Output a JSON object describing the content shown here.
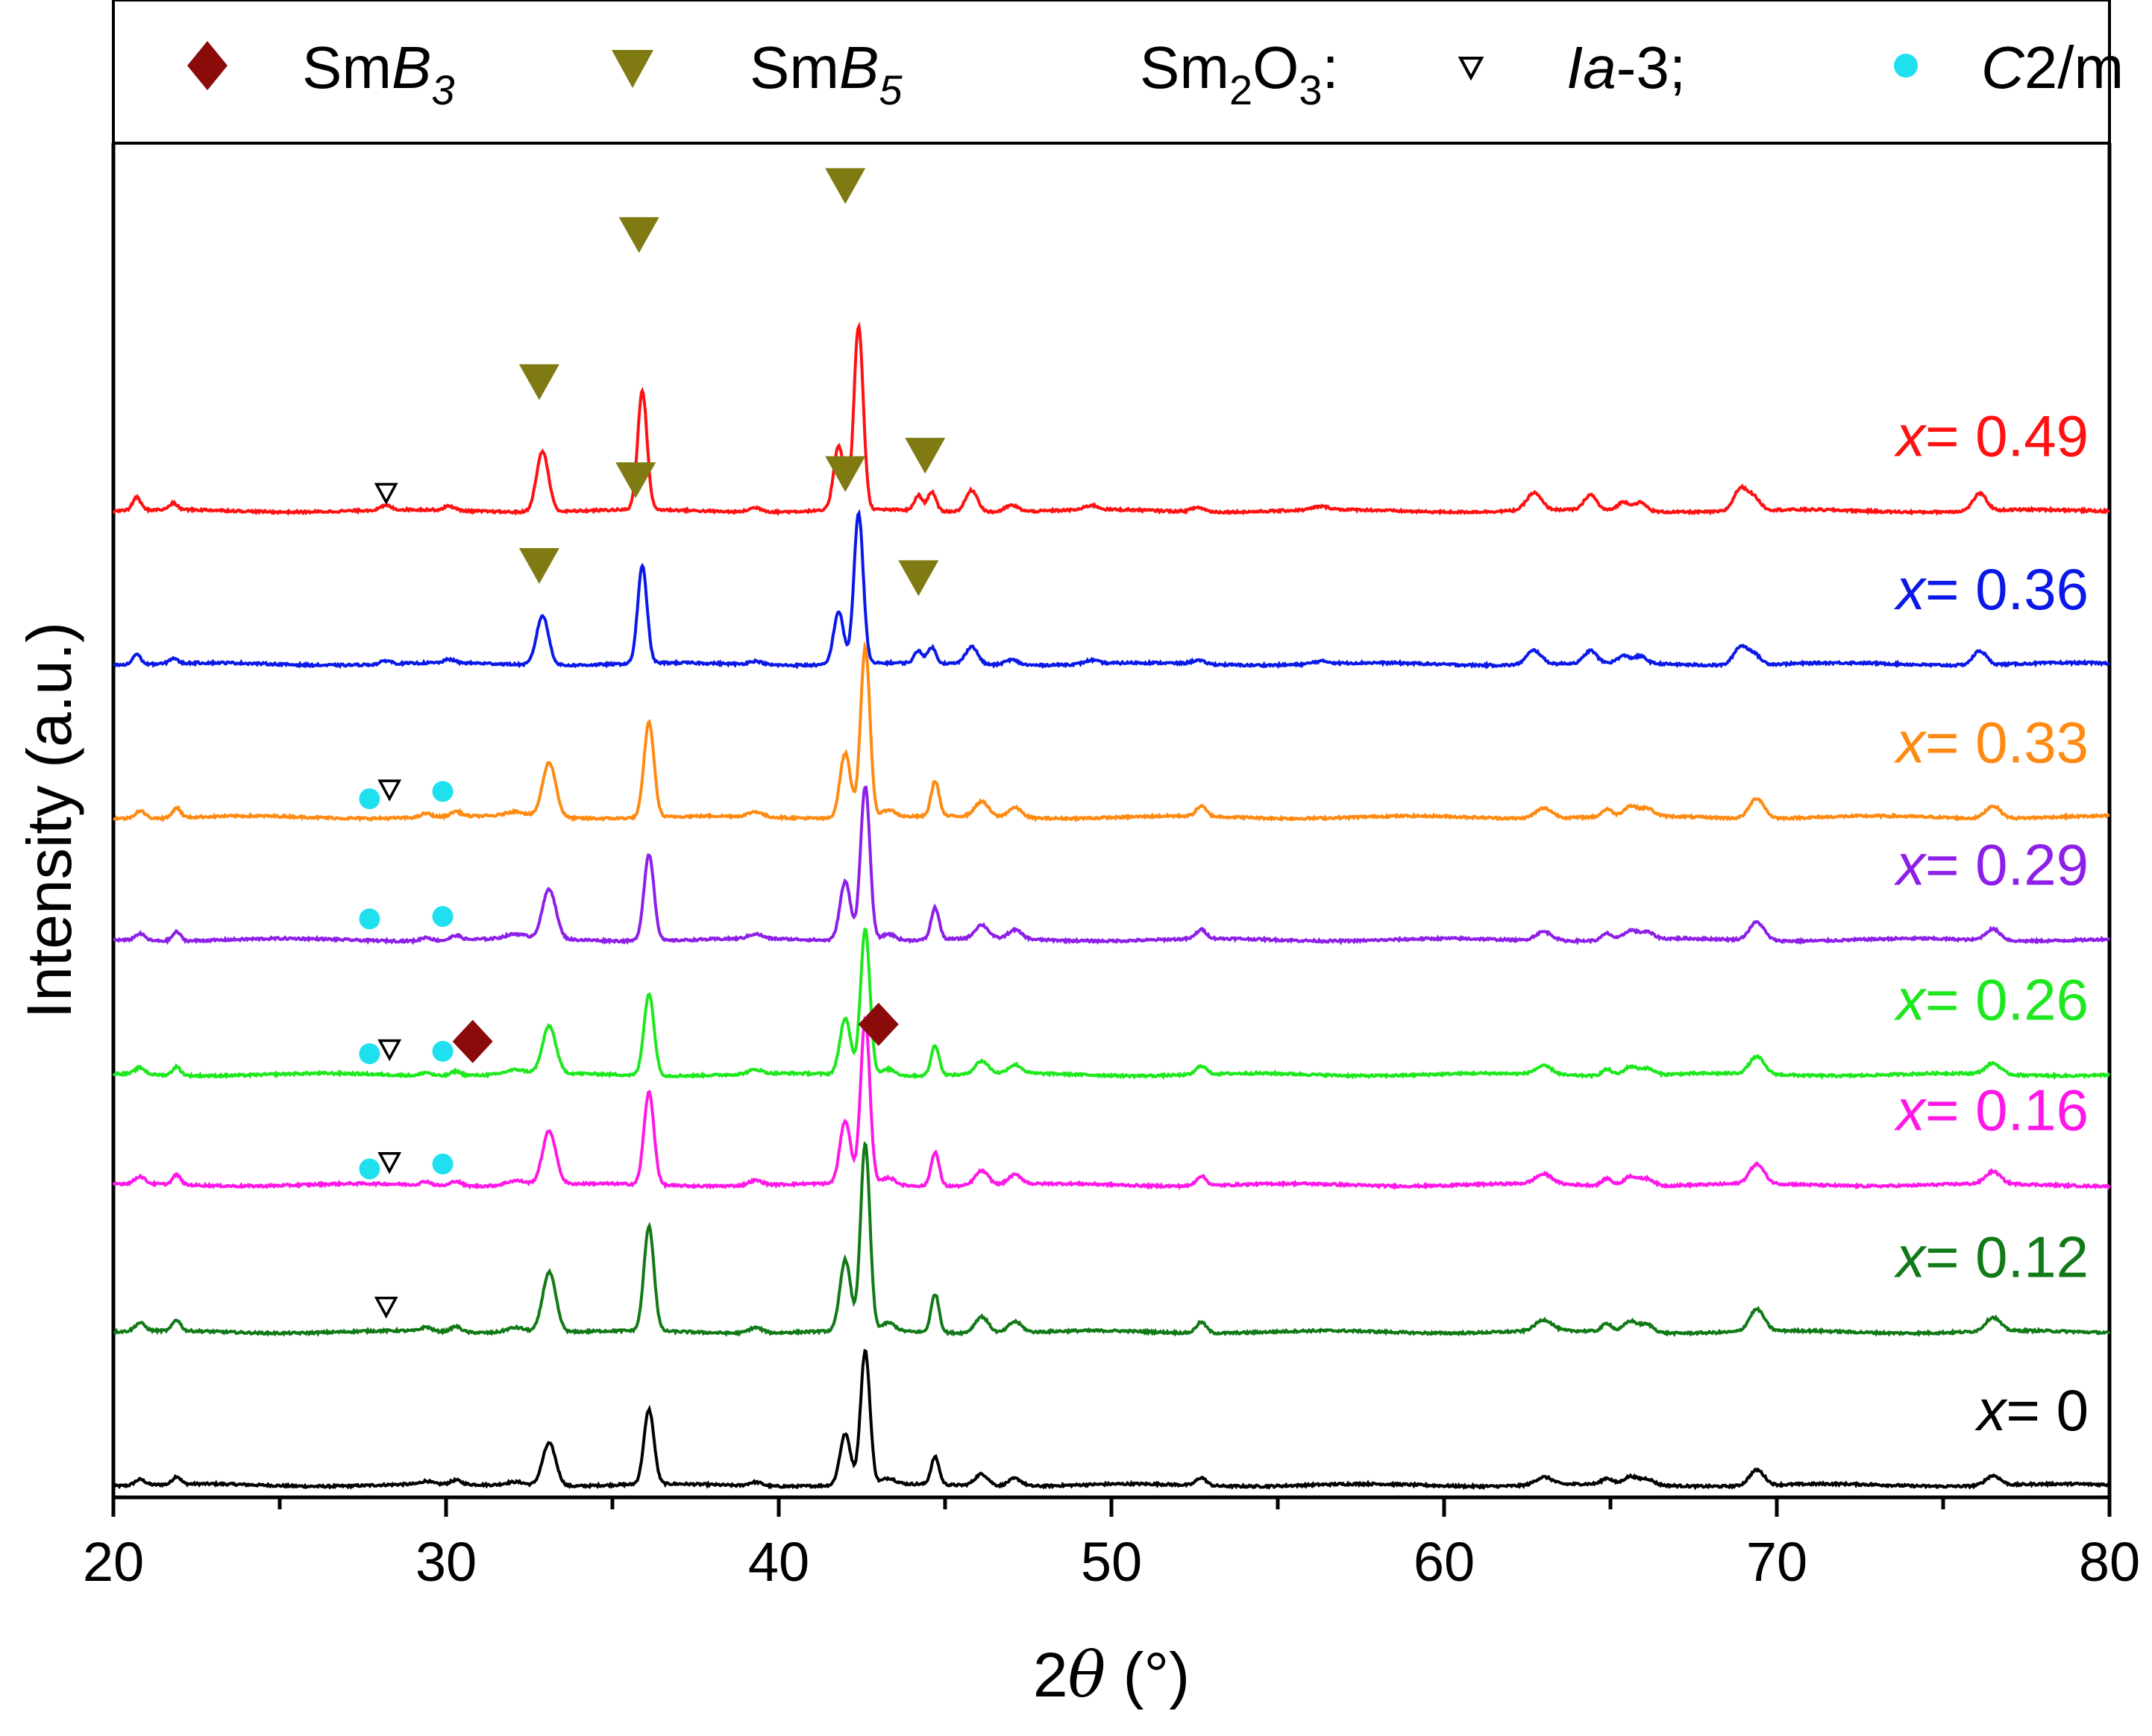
{
  "chart_data": {
    "type": "line",
    "title": "",
    "xlabel_prefix": "2",
    "xlabel_symbol": "θ",
    "xlabel_unit": " (°)",
    "ylabel": "Intensity (a.u.)",
    "xlim": [
      20,
      80
    ],
    "x_ticks": [
      "20",
      "30",
      "40",
      "50",
      "60",
      "70",
      "80"
    ],
    "grid": false,
    "legend": {
      "position": "top",
      "items": [
        {
          "marker": "diamond",
          "color": "#8b0a0a",
          "base": "Sm",
          "italic": "B",
          "sub": "3"
        },
        {
          "marker": "triangle-down",
          "color": "#7f7a12",
          "base": "Sm",
          "italic": "B",
          "sub": "5"
        },
        {
          "marker": "none",
          "label": "Sm₂O₃:",
          "base": "Sm",
          "sub1": "2",
          "mid": "O",
          "sub2": "3",
          "suffix": ":"
        },
        {
          "marker": "open-triangle-down",
          "color": "#000000",
          "italic": "Ia",
          "suffix": "-3;"
        },
        {
          "marker": "circle",
          "color": "#1fe0ef",
          "italic": "C",
          "suffix": "2/m"
        }
      ]
    },
    "common_peaks": [
      {
        "pos": 20.8,
        "h": 0.03,
        "w": 0.15
      },
      {
        "pos": 21.9,
        "h": 0.04,
        "w": 0.12
      },
      {
        "pos": 29.4,
        "h": 0.015,
        "w": 0.15
      },
      {
        "pos": 30.3,
        "h": 0.02,
        "w": 0.15
      },
      {
        "pos": 32.1,
        "h": 0.02,
        "w": 0.3
      },
      {
        "pos": 33.1,
        "h": 0.22,
        "w": 0.2
      },
      {
        "pos": 36.1,
        "h": 0.38,
        "w": 0.15
      },
      {
        "pos": 39.3,
        "h": 0.02,
        "w": 0.2
      },
      {
        "pos": 42.0,
        "h": 0.26,
        "w": 0.16
      },
      {
        "pos": 42.6,
        "h": 0.68,
        "w": 0.14
      },
      {
        "pos": 43.3,
        "h": 0.03,
        "w": 0.2
      },
      {
        "pos": 44.7,
        "h": 0.14,
        "w": 0.12
      },
      {
        "pos": 46.1,
        "h": 0.06,
        "w": 0.2
      },
      {
        "pos": 47.1,
        "h": 0.04,
        "w": 0.2
      },
      {
        "pos": 52.7,
        "h": 0.04,
        "w": 0.15
      },
      {
        "pos": 63.0,
        "h": 0.04,
        "w": 0.25
      },
      {
        "pos": 64.9,
        "h": 0.03,
        "w": 0.15
      },
      {
        "pos": 65.6,
        "h": 0.04,
        "w": 0.2
      },
      {
        "pos": 66.1,
        "h": 0.03,
        "w": 0.2
      },
      {
        "pos": 69.4,
        "h": 0.08,
        "w": 0.22
      },
      {
        "pos": 76.5,
        "h": 0.05,
        "w": 0.22
      }
    ],
    "smb5_peaks": [
      {
        "pos": 20.7,
        "h": 0.06,
        "w": 0.12
      },
      {
        "pos": 21.8,
        "h": 0.03,
        "w": 0.12
      },
      {
        "pos": 28.2,
        "h": 0.02,
        "w": 0.15
      },
      {
        "pos": 30.1,
        "h": 0.02,
        "w": 0.15
      },
      {
        "pos": 32.9,
        "h": 0.28,
        "w": 0.18
      },
      {
        "pos": 35.9,
        "h": 0.55,
        "w": 0.14
      },
      {
        "pos": 39.3,
        "h": 0.02,
        "w": 0.2
      },
      {
        "pos": 41.8,
        "h": 0.3,
        "w": 0.15
      },
      {
        "pos": 42.4,
        "h": 0.85,
        "w": 0.14
      },
      {
        "pos": 44.2,
        "h": 0.07,
        "w": 0.12
      },
      {
        "pos": 44.6,
        "h": 0.09,
        "w": 0.12
      },
      {
        "pos": 45.8,
        "h": 0.1,
        "w": 0.18
      },
      {
        "pos": 47.0,
        "h": 0.03,
        "w": 0.2
      },
      {
        "pos": 49.4,
        "h": 0.02,
        "w": 0.2
      },
      {
        "pos": 52.6,
        "h": 0.02,
        "w": 0.2
      },
      {
        "pos": 56.3,
        "h": 0.015,
        "w": 0.25
      },
      {
        "pos": 62.7,
        "h": 0.08,
        "w": 0.22
      },
      {
        "pos": 64.4,
        "h": 0.07,
        "w": 0.18
      },
      {
        "pos": 65.4,
        "h": 0.04,
        "w": 0.18
      },
      {
        "pos": 65.9,
        "h": 0.04,
        "w": 0.18
      },
      {
        "pos": 68.9,
        "h": 0.1,
        "w": 0.2
      },
      {
        "pos": 69.3,
        "h": 0.06,
        "w": 0.2
      },
      {
        "pos": 76.1,
        "h": 0.08,
        "w": 0.2
      }
    ],
    "series": [
      {
        "label": "x= 0",
        "value": "0",
        "color": "#000000",
        "baseline": 0.0,
        "scale": 0.5,
        "pattern": "common"
      },
      {
        "label": "x= 0.12",
        "value": "0.12",
        "color": "#117a17",
        "baseline": 1.25,
        "scale": 0.7,
        "pattern": "common"
      },
      {
        "label": "x= 0.16",
        "value": "0.16",
        "color": "#ff17e8",
        "baseline": 2.45,
        "scale": 0.62,
        "pattern": "common"
      },
      {
        "label": "x= 0.26",
        "value": "0.26",
        "color": "#1de81d",
        "baseline": 3.35,
        "scale": 0.55,
        "pattern": "common"
      },
      {
        "label": "x= 0.29",
        "value": "0.29",
        "color": "#8d1fe8",
        "baseline": 4.45,
        "scale": 0.58,
        "pattern": "common"
      },
      {
        "label": "x= 0.33",
        "value": "0.33",
        "color": "#ff8a12",
        "baseline": 5.45,
        "scale": 0.64,
        "pattern": "common"
      },
      {
        "label": "x= 0.36",
        "value": "0.36",
        "color": "#0a18e8",
        "baseline": 6.7,
        "scale": 0.45,
        "pattern": "smb5"
      },
      {
        "label": "x= 0.49",
        "value": "0.49",
        "color": "#ff1111",
        "baseline": 7.95,
        "scale": 0.55,
        "pattern": "smb5"
      }
    ],
    "annotations": [
      {
        "type": "triangle",
        "x": 32.8,
        "y": 9.0
      },
      {
        "type": "triangle",
        "x": 35.8,
        "y": 10.2
      },
      {
        "type": "triangle",
        "x": 42.0,
        "y": 10.6
      },
      {
        "type": "triangle",
        "x": 44.4,
        "y": 8.4
      },
      {
        "type": "open-triangle",
        "x": 28.2,
        "y": 8.1
      },
      {
        "type": "triangle",
        "x": 32.8,
        "y": 7.5
      },
      {
        "type": "triangle",
        "x": 35.7,
        "y": 8.2
      },
      {
        "type": "triangle",
        "x": 42.0,
        "y": 8.25
      },
      {
        "type": "triangle",
        "x": 44.2,
        "y": 7.4
      },
      {
        "type": "circle",
        "x": 27.7,
        "y": 5.6
      },
      {
        "type": "open-triangle",
        "x": 28.3,
        "y": 5.68
      },
      {
        "type": "circle",
        "x": 29.9,
        "y": 5.66
      },
      {
        "type": "circle",
        "x": 27.7,
        "y": 4.62
      },
      {
        "type": "circle",
        "x": 29.9,
        "y": 4.64
      },
      {
        "type": "circle",
        "x": 27.7,
        "y": 3.52
      },
      {
        "type": "open-triangle",
        "x": 28.3,
        "y": 3.56
      },
      {
        "type": "circle",
        "x": 29.9,
        "y": 3.54
      },
      {
        "type": "diamond",
        "x": 30.8,
        "y": 3.62
      },
      {
        "type": "diamond",
        "x": 43.0,
        "y": 3.76
      },
      {
        "type": "circle",
        "x": 27.7,
        "y": 2.58
      },
      {
        "type": "open-triangle",
        "x": 28.3,
        "y": 2.64
      },
      {
        "type": "circle",
        "x": 29.9,
        "y": 2.62
      },
      {
        "type": "open-triangle",
        "x": 28.2,
        "y": 1.46
      }
    ]
  }
}
